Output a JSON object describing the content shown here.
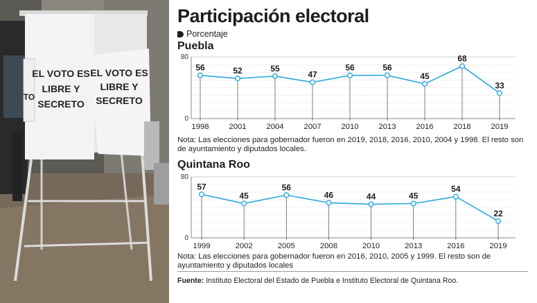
{
  "header": {
    "title": "Participación electoral",
    "legend": "Porcentaje"
  },
  "photo": {
    "sign_left": [
      "EL VOTO ES",
      "LIBRE Y",
      "SECRETO"
    ],
    "sign_right": [
      "EL VOTO ES",
      "LIBRE Y",
      "SECRETO"
    ],
    "sign_fragment": "TO"
  },
  "colors": {
    "line": "#29a9dd",
    "marker_fill": "#ffffff",
    "grid": "#8a8a8a"
  },
  "chart_data": [
    {
      "type": "line",
      "title": "Puebla",
      "x": [
        "1998",
        "2001",
        "2004",
        "2007",
        "2010",
        "2013",
        "2016",
        "2018",
        "2019"
      ],
      "series": [
        {
          "values": [
            56,
            52,
            55,
            47,
            56,
            56,
            45,
            68,
            33
          ]
        }
      ],
      "ylim": [
        0,
        80
      ],
      "yticks": [
        0,
        80
      ],
      "note": "Nota: Las elecciones para gobernador fueron en 2019, 2018, 2016, 2010, 2004 y 1998. El resto son de ayuntamiento y diputados locales."
    },
    {
      "type": "line",
      "title": "Quintana Roo",
      "x": [
        "1999",
        "2002",
        "2005",
        "2008",
        "2010",
        "2013",
        "2016",
        "2019"
      ],
      "series": [
        {
          "values": [
            57,
            45,
            56,
            46,
            44,
            45,
            54,
            22
          ]
        }
      ],
      "ylim": [
        0,
        80
      ],
      "yticks": [
        0,
        80
      ],
      "note": "Nota: Las elecciones para  gobernador fueron en 2016, 2010, 2005 y 1999. El resto son de ayuntamiento y diputados locales"
    }
  ],
  "source": {
    "label": "Fuente:",
    "text": "Instituto Electoral del Estado de Puebla e Instituto Electoral de Quintana Roo."
  }
}
